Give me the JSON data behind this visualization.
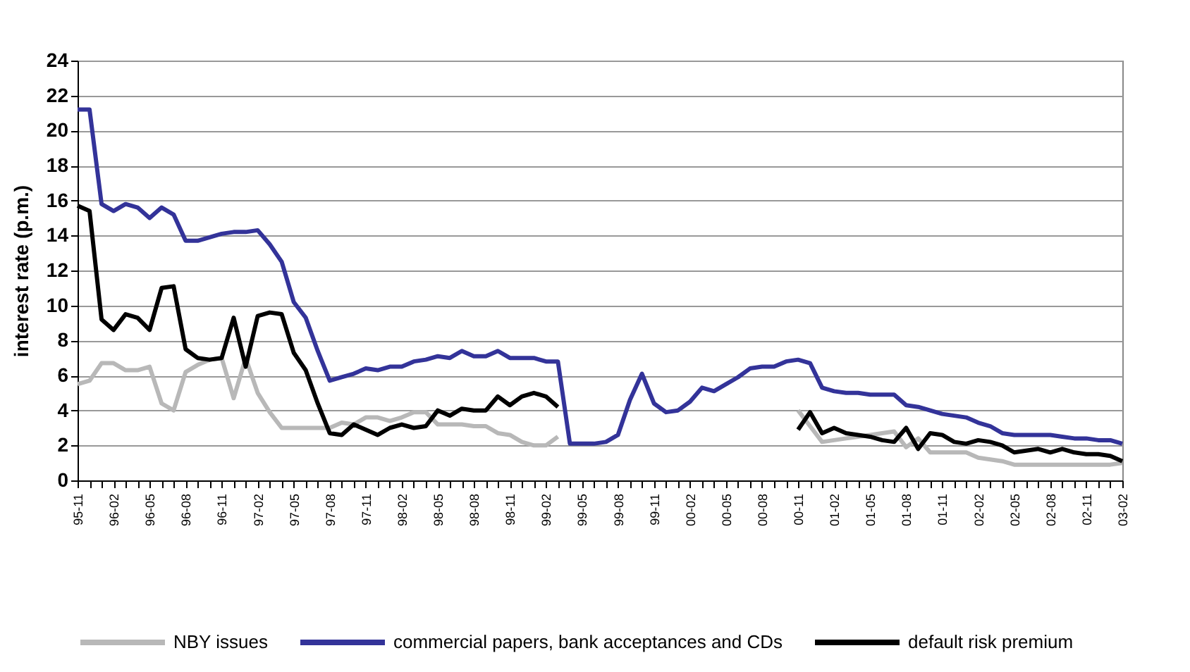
{
  "chart_data": {
    "type": "line",
    "ylabel": "interest rate (p.m.)",
    "categories": [
      "95-11",
      null,
      null,
      "96-02",
      null,
      null,
      "96-05",
      null,
      null,
      "96-08",
      null,
      null,
      "96-11",
      null,
      null,
      "97-02",
      null,
      null,
      "97-05",
      null,
      null,
      "97-08",
      null,
      null,
      "97-11",
      null,
      null,
      "98-02",
      null,
      null,
      "98-05",
      null,
      null,
      "98-08",
      null,
      null,
      "98-11",
      null,
      null,
      "99-02",
      null,
      null,
      "99-05",
      null,
      null,
      "99-08",
      null,
      null,
      "99-11",
      null,
      null,
      "00-02",
      null,
      null,
      "00-05",
      null,
      null,
      "00-08",
      null,
      null,
      "00-11",
      null,
      null,
      "01-02",
      null,
      null,
      "01-05",
      null,
      null,
      "01-08",
      null,
      null,
      "01-11",
      null,
      null,
      "02-02",
      null,
      null,
      "02-05",
      null,
      null,
      "02-08",
      null,
      null,
      "02-11",
      null,
      null,
      "03-02"
    ],
    "series": [
      {
        "name": "NBY issues",
        "color": "#b8b8b8",
        "values": [
          5.5,
          5.7,
          6.7,
          6.7,
          6.3,
          6.3,
          6.5,
          4.4,
          4.0,
          6.2,
          6.6,
          6.9,
          7.0,
          4.7,
          7.0,
          5.0,
          3.9,
          3.0,
          3.0,
          3.0,
          3.0,
          3.0,
          3.3,
          3.2,
          3.6,
          3.6,
          3.4,
          3.6,
          3.9,
          3.9,
          3.2,
          3.2,
          3.2,
          3.1,
          3.1,
          2.7,
          2.6,
          2.2,
          2.0,
          2.0,
          2.5,
          null,
          null,
          null,
          null,
          null,
          null,
          null,
          null,
          null,
          null,
          null,
          null,
          null,
          null,
          null,
          null,
          null,
          null,
          null,
          4.0,
          3.1,
          2.2,
          2.3,
          2.4,
          2.5,
          2.6,
          2.7,
          2.8,
          1.9,
          2.4,
          1.6,
          1.6,
          1.6,
          1.6,
          1.3,
          1.2,
          1.1,
          0.9,
          0.9,
          0.9,
          0.9,
          0.9,
          0.9,
          0.9,
          0.9,
          0.9,
          1.0
        ]
      },
      {
        "name": "commercial papers, bank acceptances and CDs",
        "color": "#333399",
        "values": [
          21.2,
          21.2,
          15.8,
          15.4,
          15.8,
          15.6,
          15.0,
          15.6,
          15.2,
          13.7,
          13.7,
          13.9,
          14.1,
          14.2,
          14.2,
          14.3,
          13.5,
          12.5,
          10.2,
          9.3,
          7.4,
          5.7,
          5.9,
          6.1,
          6.4,
          6.3,
          6.5,
          6.5,
          6.8,
          6.9,
          7.1,
          7.0,
          7.4,
          7.1,
          7.1,
          7.4,
          7.0,
          7.0,
          7.0,
          6.8,
          6.8,
          2.1,
          2.1,
          2.1,
          2.2,
          2.6,
          4.6,
          6.1,
          4.4,
          3.9,
          4.0,
          4.5,
          5.3,
          5.1,
          5.5,
          5.9,
          6.4,
          6.5,
          6.5,
          6.8,
          6.9,
          6.7,
          5.3,
          5.1,
          5.0,
          5.0,
          4.9,
          4.9,
          4.9,
          4.3,
          4.2,
          4.0,
          3.8,
          3.7,
          3.6,
          3.3,
          3.1,
          2.7,
          2.6,
          2.6,
          2.6,
          2.6,
          2.5,
          2.4,
          2.4,
          2.3,
          2.3,
          2.1
        ]
      },
      {
        "name": "default risk premium",
        "color": "#000000",
        "values": [
          15.7,
          15.4,
          9.2,
          8.6,
          9.5,
          9.3,
          8.6,
          11.0,
          11.1,
          7.5,
          7.0,
          6.9,
          7.0,
          9.3,
          6.5,
          9.4,
          9.6,
          9.5,
          7.3,
          6.3,
          4.4,
          2.7,
          2.6,
          3.2,
          2.9,
          2.6,
          3.0,
          3.2,
          3.0,
          3.1,
          4.0,
          3.7,
          4.1,
          4.0,
          4.0,
          4.8,
          4.3,
          4.8,
          5.0,
          4.8,
          4.2,
          null,
          null,
          null,
          null,
          null,
          null,
          null,
          null,
          null,
          null,
          null,
          null,
          null,
          null,
          null,
          null,
          null,
          null,
          null,
          2.9,
          3.9,
          2.7,
          3.0,
          2.7,
          2.6,
          2.5,
          2.3,
          2.2,
          3.0,
          1.8,
          2.7,
          2.6,
          2.2,
          2.1,
          2.3,
          2.2,
          2.0,
          1.6,
          1.7,
          1.8,
          1.6,
          1.8,
          1.6,
          1.5,
          1.5,
          1.4,
          1.1
        ]
      }
    ],
    "ylim": [
      0,
      24
    ],
    "yticks": [
      0,
      2,
      4,
      6,
      8,
      10,
      12,
      14,
      16,
      18,
      20,
      22,
      24
    ],
    "grid": "y",
    "legend": "bottom"
  }
}
